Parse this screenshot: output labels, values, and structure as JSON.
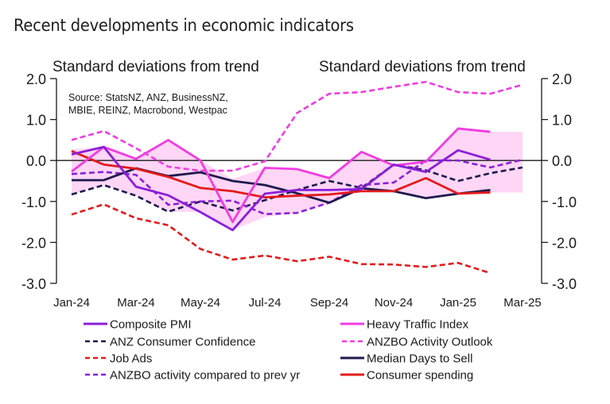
{
  "title": "Recent developments in economic indicators",
  "chart_data": {
    "type": "line",
    "title": "Recent developments in economic indicators",
    "ylabel_left": "Standard deviations from trend",
    "ylabel_right": "Standard deviations from trend",
    "xlabel": "",
    "source": [
      "Source: StatsNZ, ANZ, BusinessNZ,",
      "MBIE, REINZ, Macrobond, Westpac"
    ],
    "ylim": [
      -3.0,
      2.0
    ],
    "yticks": [
      2.0,
      1.0,
      0.0,
      -1.0,
      -2.0,
      -3.0
    ],
    "ytick_labels": [
      "2.0",
      "1.0",
      "0.0",
      "-1.0",
      "-2.0",
      "-3.0"
    ],
    "x": [
      "Jan-24",
      "Feb-24",
      "Mar-24",
      "Apr-24",
      "May-24",
      "Jun-24",
      "Jul-24",
      "Aug-24",
      "Sep-24",
      "Oct-24",
      "Nov-24",
      "Dec-24",
      "Jan-25",
      "Feb-25",
      "Mar-25"
    ],
    "xtick_labels": [
      "Jan-24",
      "Mar-24",
      "May-24",
      "Jul-24",
      "Sep-24",
      "Nov-24",
      "Jan-25",
      "Mar-25"
    ],
    "grid": false,
    "zero_line": true,
    "band": {
      "name": "Range",
      "color": "#ffd6f5",
      "upper": [
        0.27,
        0.33,
        0.04,
        0.5,
        0.0,
        -0.45,
        -0.18,
        -0.21,
        -0.43,
        0.21,
        -0.1,
        0.0,
        0.78,
        0.7,
        0.7
      ],
      "lower": [
        -0.83,
        -0.6,
        -0.86,
        -1.25,
        -1.26,
        -1.7,
        -1.38,
        -1.28,
        -1.03,
        -0.68,
        -0.75,
        -0.92,
        -0.81,
        -0.78,
        -0.78
      ]
    },
    "series": [
      {
        "name": "Job Ads",
        "color": "#e31b1b",
        "dash": true,
        "values": [
          -1.32,
          -1.07,
          -1.41,
          -1.58,
          -2.16,
          -2.42,
          -2.32,
          -2.46,
          -2.35,
          -2.53,
          -2.54,
          -2.6,
          -2.5,
          -2.75,
          null
        ]
      },
      {
        "name": "ANZBO Activity Outlook",
        "color": "#f03ce0",
        "dash": true,
        "values": [
          0.5,
          0.72,
          0.3,
          -0.15,
          -0.25,
          -0.25,
          -0.02,
          1.16,
          1.63,
          1.67,
          1.8,
          1.92,
          1.67,
          1.63,
          1.85
        ]
      },
      {
        "name": "ANZ Consumer Confidence",
        "color": "#1e1a4d",
        "dash": true,
        "values": [
          -0.83,
          -0.6,
          -0.86,
          -1.25,
          -1.0,
          -1.22,
          -0.97,
          -0.72,
          -0.5,
          -0.67,
          -0.1,
          -0.24,
          -0.5,
          -0.31,
          -0.17
        ]
      },
      {
        "name": "ANZBO activity compared to prev yr",
        "color": "#8a1fd8",
        "dash": true,
        "values": [
          -0.33,
          -0.28,
          -0.35,
          -1.08,
          -1.0,
          -0.98,
          -1.31,
          -1.28,
          -1.03,
          -0.6,
          -0.54,
          0.0,
          0.0,
          -0.17,
          0.02
        ]
      },
      {
        "name": "Median Days to Sell",
        "color": "#1e1a4d",
        "dash": false,
        "values": [
          -0.48,
          -0.48,
          -0.19,
          -0.38,
          -0.29,
          -0.5,
          -0.6,
          -0.8,
          -1.03,
          -0.68,
          -0.75,
          -0.92,
          -0.81,
          -0.72,
          null
        ]
      },
      {
        "name": "Consumer spending",
        "color": "#e31b1b",
        "dash": false,
        "values": [
          0.23,
          -0.1,
          -0.2,
          -0.4,
          -0.67,
          -0.75,
          -0.9,
          -0.86,
          -0.83,
          -0.75,
          -0.75,
          -0.43,
          -0.81,
          -0.78,
          null
        ]
      },
      {
        "name": "Heavy Traffic Index",
        "color": "#f03ce0",
        "dash": false,
        "values": [
          -0.27,
          0.33,
          0.04,
          0.5,
          0.0,
          -1.5,
          -0.18,
          -0.21,
          -0.43,
          0.21,
          -0.12,
          -0.03,
          0.78,
          0.7,
          null
        ]
      },
      {
        "name": "Composite PMI",
        "color": "#8a1fd8",
        "dash": false,
        "values": [
          0.15,
          0.33,
          -0.64,
          -0.85,
          -1.26,
          -1.7,
          -0.81,
          -0.72,
          -0.72,
          -0.7,
          -0.1,
          -0.28,
          0.25,
          0.02,
          null
        ]
      }
    ],
    "legend": {
      "placement": "bottom",
      "items": [
        {
          "name": "Composite PMI",
          "color": "#8a1fd8",
          "dash": false
        },
        {
          "name": "Heavy Traffic Index",
          "color": "#f03ce0",
          "dash": false
        },
        {
          "name": "ANZ Consumer Confidence",
          "color": "#1e1a4d",
          "dash": true
        },
        {
          "name": "ANZBO Activity Outlook",
          "color": "#f03ce0",
          "dash": true
        },
        {
          "name": "Job Ads",
          "color": "#e31b1b",
          "dash": true
        },
        {
          "name": "Median Days to Sell",
          "color": "#1e1a4d",
          "dash": false
        },
        {
          "name": "ANZBO activity compared to prev yr",
          "color": "#8a1fd8",
          "dash": true
        },
        {
          "name": "Consumer spending",
          "color": "#e31b1b",
          "dash": false
        }
      ]
    }
  }
}
